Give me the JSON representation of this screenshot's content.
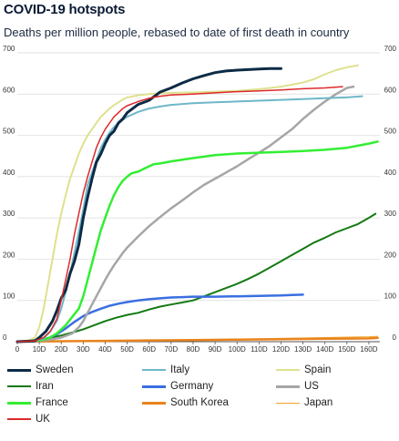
{
  "chart_data": {
    "type": "line",
    "title": "COVID-19 hotspots",
    "subtitle": "Deaths per million people, rebased to date of first death in country",
    "xlabel": "",
    "ylabel": "",
    "xlim": [
      0,
      165
    ],
    "ylim": [
      0,
      700
    ],
    "xticks": [
      0,
      10,
      20,
      30,
      40,
      50,
      60,
      70,
      80,
      90,
      100,
      110,
      120,
      130,
      140,
      150,
      160
    ],
    "xtick_labels": [
      "0",
      "10D",
      "20D",
      "30D",
      "40D",
      "50D",
      "60D",
      "70D",
      "80D",
      "90D",
      "100D",
      "110D",
      "120D",
      "130D",
      "140D",
      "150D",
      "160D"
    ],
    "yticks": [
      0,
      100,
      200,
      300,
      400,
      500,
      600,
      700
    ],
    "grid": "horizontal",
    "legend_position": "bottom",
    "series": [
      {
        "name": "Sweden",
        "color": "#0d2b45",
        "width": 3,
        "points": [
          [
            0,
            0
          ],
          [
            8,
            2
          ],
          [
            10,
            10
          ],
          [
            13,
            25
          ],
          [
            16,
            50
          ],
          [
            18,
            75
          ],
          [
            20,
            105
          ],
          [
            22,
            125
          ],
          [
            24,
            165
          ],
          [
            26,
            195
          ],
          [
            28,
            235
          ],
          [
            30,
            300
          ],
          [
            32,
            350
          ],
          [
            34,
            395
          ],
          [
            36,
            435
          ],
          [
            38,
            455
          ],
          [
            40,
            480
          ],
          [
            42,
            500
          ],
          [
            44,
            510
          ],
          [
            46,
            530
          ],
          [
            48,
            540
          ],
          [
            50,
            555
          ],
          [
            55,
            575
          ],
          [
            60,
            585
          ],
          [
            65,
            605
          ],
          [
            70,
            615
          ],
          [
            75,
            627
          ],
          [
            80,
            637
          ],
          [
            85,
            645
          ],
          [
            90,
            652
          ],
          [
            95,
            656
          ],
          [
            100,
            658
          ],
          [
            110,
            661
          ],
          [
            115,
            662
          ],
          [
            120,
            662
          ]
        ]
      },
      {
        "name": "Italy",
        "color": "#6fb7c7",
        "width": 2,
        "points": [
          [
            0,
            0
          ],
          [
            8,
            2
          ],
          [
            12,
            8
          ],
          [
            15,
            25
          ],
          [
            18,
            50
          ],
          [
            20,
            80
          ],
          [
            22,
            120
          ],
          [
            24,
            165
          ],
          [
            26,
            215
          ],
          [
            28,
            265
          ],
          [
            30,
            320
          ],
          [
            32,
            380
          ],
          [
            34,
            410
          ],
          [
            36,
            440
          ],
          [
            38,
            470
          ],
          [
            40,
            490
          ],
          [
            42,
            507
          ],
          [
            44,
            520
          ],
          [
            46,
            530
          ],
          [
            48,
            538
          ],
          [
            50,
            545
          ],
          [
            55,
            557
          ],
          [
            60,
            565
          ],
          [
            65,
            570
          ],
          [
            70,
            574
          ],
          [
            80,
            578
          ],
          [
            90,
            580
          ],
          [
            100,
            582
          ],
          [
            110,
            584
          ],
          [
            120,
            586
          ],
          [
            130,
            588
          ],
          [
            140,
            590
          ],
          [
            150,
            592
          ],
          [
            157,
            595
          ]
        ]
      },
      {
        "name": "Spain",
        "color": "#dfe18e",
        "width": 2,
        "points": [
          [
            0,
            0
          ],
          [
            5,
            3
          ],
          [
            8,
            10
          ],
          [
            10,
            35
          ],
          [
            12,
            80
          ],
          [
            14,
            140
          ],
          [
            16,
            200
          ],
          [
            18,
            260
          ],
          [
            20,
            310
          ],
          [
            22,
            355
          ],
          [
            24,
            395
          ],
          [
            26,
            425
          ],
          [
            28,
            455
          ],
          [
            30,
            480
          ],
          [
            32,
            500
          ],
          [
            34,
            515
          ],
          [
            36,
            530
          ],
          [
            38,
            545
          ],
          [
            40,
            555
          ],
          [
            42,
            565
          ],
          [
            44,
            573
          ],
          [
            46,
            580
          ],
          [
            48,
            587
          ],
          [
            50,
            592
          ],
          [
            55,
            597
          ],
          [
            60,
            600
          ],
          [
            65,
            602
          ],
          [
            70,
            603
          ],
          [
            80,
            604
          ],
          [
            90,
            606
          ],
          [
            100,
            608
          ],
          [
            110,
            612
          ],
          [
            120,
            618
          ],
          [
            130,
            628
          ],
          [
            135,
            636
          ],
          [
            140,
            648
          ],
          [
            145,
            658
          ],
          [
            150,
            665
          ],
          [
            155,
            670
          ]
        ]
      },
      {
        "name": "Iran",
        "color": "#137a13",
        "width": 2,
        "points": [
          [
            0,
            0
          ],
          [
            10,
            5
          ],
          [
            15,
            10
          ],
          [
            20,
            15
          ],
          [
            25,
            22
          ],
          [
            30,
            30
          ],
          [
            35,
            40
          ],
          [
            40,
            50
          ],
          [
            45,
            58
          ],
          [
            50,
            65
          ],
          [
            55,
            70
          ],
          [
            60,
            78
          ],
          [
            65,
            85
          ],
          [
            70,
            90
          ],
          [
            75,
            95
          ],
          [
            80,
            100
          ],
          [
            85,
            110
          ],
          [
            90,
            120
          ],
          [
            95,
            130
          ],
          [
            100,
            140
          ],
          [
            105,
            152
          ],
          [
            110,
            165
          ],
          [
            115,
            180
          ],
          [
            120,
            195
          ],
          [
            125,
            210
          ],
          [
            130,
            225
          ],
          [
            135,
            240
          ],
          [
            140,
            252
          ],
          [
            145,
            265
          ],
          [
            150,
            275
          ],
          [
            155,
            285
          ],
          [
            160,
            300
          ],
          [
            163,
            310
          ]
        ]
      },
      {
        "name": "Germany",
        "color": "#3a6fe0",
        "width": 2.5,
        "points": [
          [
            0,
            0
          ],
          [
            10,
            2
          ],
          [
            14,
            8
          ],
          [
            18,
            18
          ],
          [
            22,
            32
          ],
          [
            26,
            48
          ],
          [
            30,
            62
          ],
          [
            34,
            72
          ],
          [
            38,
            80
          ],
          [
            42,
            87
          ],
          [
            46,
            92
          ],
          [
            50,
            96
          ],
          [
            55,
            100
          ],
          [
            60,
            103
          ],
          [
            65,
            105
          ],
          [
            70,
            107
          ],
          [
            75,
            108
          ],
          [
            80,
            109
          ],
          [
            90,
            109
          ],
          [
            100,
            110
          ],
          [
            110,
            111
          ],
          [
            120,
            112
          ],
          [
            125,
            113
          ],
          [
            130,
            114
          ]
        ]
      },
      {
        "name": "US",
        "color": "#a6a6a6",
        "width": 2.5,
        "points": [
          [
            0,
            0
          ],
          [
            10,
            2
          ],
          [
            15,
            5
          ],
          [
            20,
            10
          ],
          [
            25,
            20
          ],
          [
            28,
            35
          ],
          [
            30,
            50
          ],
          [
            32,
            70
          ],
          [
            34,
            90
          ],
          [
            36,
            110
          ],
          [
            38,
            130
          ],
          [
            40,
            150
          ],
          [
            42,
            168
          ],
          [
            44,
            185
          ],
          [
            46,
            200
          ],
          [
            48,
            215
          ],
          [
            50,
            228
          ],
          [
            55,
            255
          ],
          [
            60,
            280
          ],
          [
            65,
            302
          ],
          [
            70,
            323
          ],
          [
            75,
            342
          ],
          [
            80,
            362
          ],
          [
            85,
            380
          ],
          [
            90,
            395
          ],
          [
            95,
            410
          ],
          [
            100,
            425
          ],
          [
            105,
            442
          ],
          [
            110,
            458
          ],
          [
            115,
            475
          ],
          [
            120,
            495
          ],
          [
            125,
            515
          ],
          [
            130,
            540
          ],
          [
            135,
            562
          ],
          [
            140,
            582
          ],
          [
            145,
            600
          ],
          [
            150,
            615
          ],
          [
            153,
            618
          ]
        ]
      },
      {
        "name": "France",
        "color": "#33ee33",
        "width": 2.5,
        "points": [
          [
            0,
            0
          ],
          [
            10,
            3
          ],
          [
            14,
            8
          ],
          [
            18,
            20
          ],
          [
            22,
            40
          ],
          [
            25,
            60
          ],
          [
            28,
            80
          ],
          [
            30,
            110
          ],
          [
            32,
            150
          ],
          [
            34,
            190
          ],
          [
            36,
            230
          ],
          [
            38,
            270
          ],
          [
            40,
            300
          ],
          [
            42,
            330
          ],
          [
            44,
            355
          ],
          [
            46,
            375
          ],
          [
            48,
            390
          ],
          [
            50,
            400
          ],
          [
            52,
            408
          ],
          [
            55,
            412
          ],
          [
            58,
            420
          ],
          [
            60,
            425
          ],
          [
            62,
            430
          ],
          [
            65,
            432
          ],
          [
            70,
            437
          ],
          [
            80,
            445
          ],
          [
            90,
            452
          ],
          [
            100,
            456
          ],
          [
            110,
            458
          ],
          [
            120,
            460
          ],
          [
            130,
            462
          ],
          [
            140,
            465
          ],
          [
            150,
            470
          ],
          [
            155,
            475
          ],
          [
            160,
            480
          ],
          [
            164,
            485
          ]
        ]
      },
      {
        "name": "South Korea",
        "color": "#e9831d",
        "width": 2.5,
        "points": [
          [
            0,
            0
          ],
          [
            20,
            1
          ],
          [
            40,
            2
          ],
          [
            60,
            3
          ],
          [
            80,
            4
          ],
          [
            100,
            5
          ],
          [
            120,
            6
          ],
          [
            140,
            7
          ],
          [
            160,
            8
          ],
          [
            164,
            9
          ]
        ]
      },
      {
        "name": "Japan",
        "color": "#f0a52b",
        "width": 1,
        "points": [
          [
            0,
            0
          ],
          [
            20,
            1
          ],
          [
            40,
            2
          ],
          [
            60,
            3
          ],
          [
            80,
            4
          ],
          [
            100,
            6
          ],
          [
            120,
            8
          ],
          [
            140,
            10
          ],
          [
            160,
            12
          ],
          [
            164,
            13
          ]
        ]
      },
      {
        "name": "UK",
        "color": "#dd2a2a",
        "width": 1.5,
        "points": [
          [
            0,
            0
          ],
          [
            8,
            2
          ],
          [
            12,
            10
          ],
          [
            15,
            25
          ],
          [
            18,
            55
          ],
          [
            20,
            100
          ],
          [
            22,
            150
          ],
          [
            24,
            200
          ],
          [
            26,
            260
          ],
          [
            28,
            310
          ],
          [
            30,
            360
          ],
          [
            32,
            400
          ],
          [
            34,
            435
          ],
          [
            36,
            470
          ],
          [
            38,
            495
          ],
          [
            40,
            515
          ],
          [
            42,
            530
          ],
          [
            44,
            545
          ],
          [
            46,
            555
          ],
          [
            48,
            565
          ],
          [
            50,
            572
          ],
          [
            55,
            582
          ],
          [
            60,
            590
          ],
          [
            65,
            595
          ],
          [
            70,
            598
          ],
          [
            80,
            600
          ],
          [
            90,
            603
          ],
          [
            100,
            606
          ],
          [
            110,
            608
          ],
          [
            120,
            610
          ],
          [
            130,
            613
          ],
          [
            140,
            615
          ],
          [
            148,
            618
          ]
        ]
      }
    ]
  }
}
